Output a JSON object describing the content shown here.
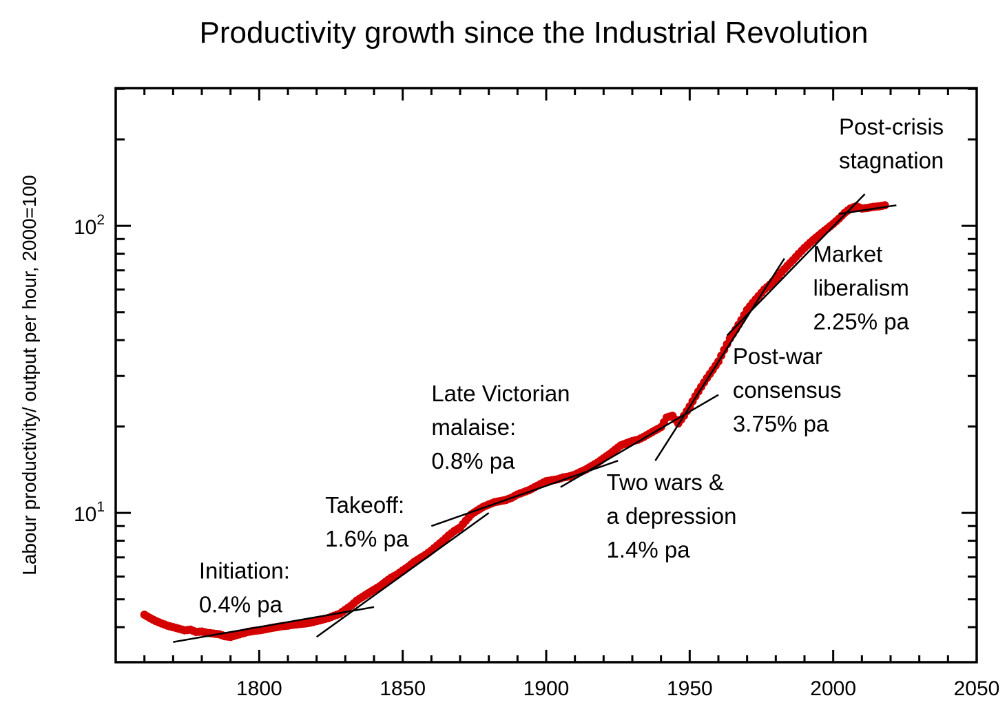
{
  "chart_data": {
    "type": "scatter",
    "title": "Productivity growth since the Industrial Revolution",
    "xlabel": "",
    "ylabel": "Labour productivity/ output per hour, 2000=100",
    "xlim": [
      1750,
      2050
    ],
    "ylim": [
      3.02,
      302
    ],
    "yscale": "log",
    "xticks": [
      1800,
      1850,
      1900,
      1950,
      2000,
      2050
    ],
    "yticks": [
      {
        "value": 10,
        "base": "10",
        "exp": "1"
      },
      {
        "value": 100,
        "base": "10",
        "exp": "2"
      }
    ],
    "grid": false,
    "series": [
      {
        "name": "Labour productivity",
        "color": "#d40000",
        "x": [
          1760,
          1762,
          1764,
          1766,
          1768,
          1770,
          1772,
          1774,
          1776,
          1778,
          1780,
          1782,
          1784,
          1786,
          1788,
          1790,
          1792,
          1794,
          1796,
          1798,
          1800,
          1802,
          1804,
          1806,
          1808,
          1810,
          1812,
          1814,
          1816,
          1818,
          1820,
          1822,
          1824,
          1826,
          1828,
          1830,
          1832,
          1834,
          1836,
          1838,
          1840,
          1842,
          1844,
          1846,
          1848,
          1850,
          1852,
          1854,
          1856,
          1858,
          1860,
          1862,
          1864,
          1866,
          1868,
          1870,
          1872,
          1874,
          1876,
          1878,
          1880,
          1882,
          1884,
          1886,
          1888,
          1890,
          1892,
          1894,
          1896,
          1898,
          1900,
          1902,
          1904,
          1906,
          1908,
          1910,
          1912,
          1914,
          1916,
          1918,
          1920,
          1922,
          1924,
          1926,
          1928,
          1930,
          1932,
          1934,
          1936,
          1938,
          1940,
          1942,
          1944,
          1946,
          1948,
          1950,
          1952,
          1954,
          1956,
          1958,
          1960,
          1962,
          1964,
          1966,
          1968,
          1970,
          1972,
          1974,
          1976,
          1978,
          1980,
          1982,
          1984,
          1986,
          1988,
          1990,
          1992,
          1994,
          1996,
          1998,
          2000,
          2002,
          2004,
          2006,
          2008,
          2010,
          2012,
          2014,
          2016,
          2018
        ],
        "values": [
          4.42,
          4.3,
          4.2,
          4.12,
          4.05,
          4.0,
          3.95,
          3.9,
          3.92,
          3.85,
          3.86,
          3.82,
          3.8,
          3.78,
          3.72,
          3.7,
          3.75,
          3.8,
          3.85,
          3.88,
          3.9,
          3.93,
          3.97,
          4.0,
          4.03,
          4.05,
          4.08,
          4.1,
          4.12,
          4.15,
          4.2,
          4.25,
          4.3,
          4.38,
          4.45,
          4.6,
          4.75,
          4.95,
          5.1,
          5.25,
          5.4,
          5.55,
          5.75,
          5.95,
          6.1,
          6.3,
          6.5,
          6.75,
          6.95,
          7.15,
          7.4,
          7.7,
          8.0,
          8.35,
          8.65,
          8.9,
          9.4,
          9.9,
          10.2,
          10.5,
          10.7,
          10.9,
          11.0,
          11.1,
          11.3,
          11.6,
          11.8,
          12.0,
          12.3,
          12.6,
          12.9,
          13.0,
          13.1,
          13.3,
          13.4,
          13.6,
          13.9,
          14.2,
          14.6,
          15.0,
          15.5,
          16.0,
          16.6,
          17.2,
          17.5,
          17.8,
          18.0,
          18.4,
          18.9,
          19.4,
          19.9,
          21.5,
          21.8,
          20.5,
          21.8,
          23.5,
          25.5,
          27.5,
          29.5,
          31.5,
          33.7,
          37.0,
          40.5,
          43.5,
          47.0,
          51.0,
          54.0,
          57.0,
          60.0,
          62.5,
          65.4,
          69.0,
          72.5,
          76.0,
          80.0,
          83.8,
          87.5,
          91.0,
          94.5,
          98.0,
          101.7,
          106.0,
          111.0,
          115.0,
          117.0,
          115.0,
          115.5,
          116.5,
          117.0,
          118.0
        ]
      }
    ],
    "trend_lines": [
      {
        "name": "Initiation",
        "rate_pa": "0.4%",
        "x": [
          1770,
          1840
        ],
        "y": [
          3.55,
          4.7
        ]
      },
      {
        "name": "Takeoff",
        "rate_pa": "1.6%",
        "x": [
          1820,
          1880
        ],
        "y": [
          3.7,
          10.0
        ]
      },
      {
        "name": "Late Victorian malaise",
        "rate_pa": "0.8%",
        "x": [
          1860,
          1925
        ],
        "y": [
          9.0,
          15.2
        ]
      },
      {
        "name": "Two wars & a depression",
        "rate_pa": "1.4%",
        "x": [
          1905,
          1960
        ],
        "y": [
          12.3,
          25.8
        ]
      },
      {
        "name": "Post-war consensus",
        "rate_pa": "3.75%",
        "x": [
          1938,
          1983
        ],
        "y": [
          15.2,
          77.0
        ]
      },
      {
        "name": "Market liberalism",
        "rate_pa": "2.25%",
        "x": [
          1963,
          2011
        ],
        "y": [
          41.5,
          129.0
        ]
      },
      {
        "name": "Post-crisis stagnation",
        "rate_pa": "",
        "x": [
          2002,
          2022
        ],
        "y": [
          110.0,
          118.0
        ]
      }
    ],
    "annotations": [
      {
        "id": "initiation",
        "lines": [
          "Initiation:",
          "0.4% pa"
        ],
        "x": 1779,
        "y": 5.9
      },
      {
        "id": "takeoff",
        "lines": [
          "Takeoff:",
          "1.6% pa"
        ],
        "x": 1823,
        "y": 10.0
      },
      {
        "id": "late-victorian",
        "lines": [
          "Late Victorian",
          "malaise:",
          "0.8% pa"
        ],
        "x": 1860,
        "y": 24.5
      },
      {
        "id": "two-wars",
        "lines": [
          "Two wars &",
          "a depression",
          "1.4% pa"
        ],
        "x": 1921,
        "y": 12.0
      },
      {
        "id": "post-war",
        "lines": [
          "Post-war",
          "consensus",
          "3.75% pa"
        ],
        "x": 1965,
        "y": 33.0
      },
      {
        "id": "market-liberalism",
        "lines": [
          "Market",
          "liberalism",
          "2.25% pa"
        ],
        "x": 1993,
        "y": 75.0
      },
      {
        "id": "post-crisis",
        "lines": [
          "Post-crisis",
          "stagnation"
        ],
        "x": 2002,
        "y": 208.0
      }
    ]
  }
}
